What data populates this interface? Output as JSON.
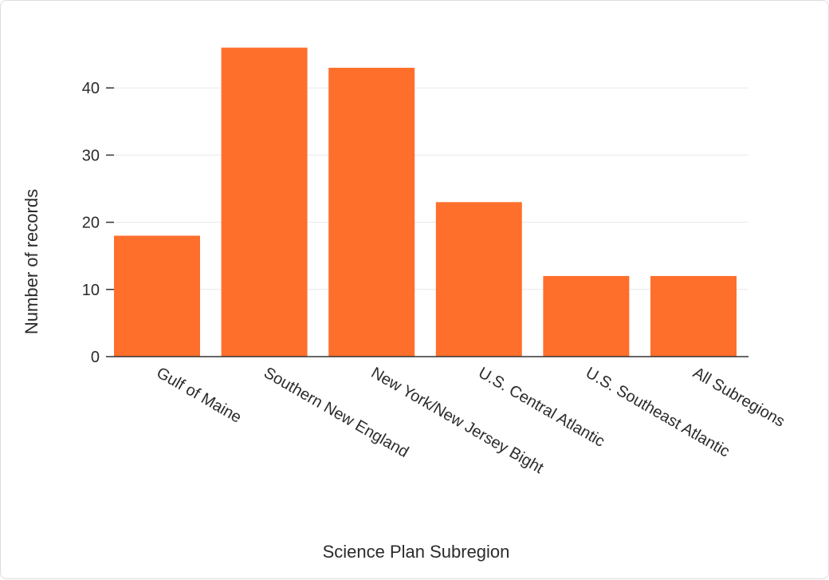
{
  "chart_data": {
    "type": "bar",
    "categories": [
      "Gulf of Maine",
      "Southern New England",
      "New York/New Jersey Bight",
      "U.S. Central Atlantic",
      "U.S. Southeast Atlantic",
      "All Subregions"
    ],
    "values": [
      18,
      46,
      43,
      23,
      12,
      12
    ],
    "xlabel": "Science Plan Subregion",
    "ylabel": "Number of records",
    "ylim": [
      0,
      50
    ],
    "yticks": [
      0,
      10,
      20,
      30,
      40
    ],
    "grid": true,
    "colors": {
      "bar": "#ff6f2c"
    }
  }
}
